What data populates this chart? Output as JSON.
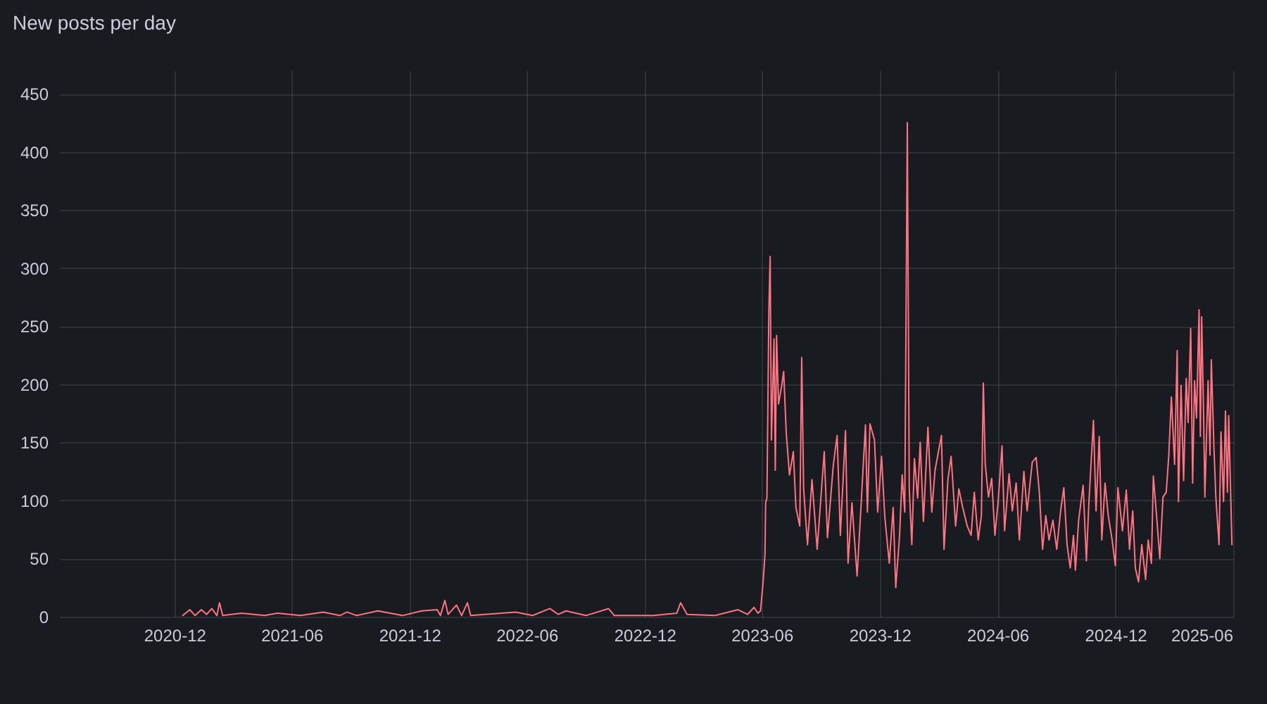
{
  "chart_data": {
    "type": "line",
    "title": "New posts per day",
    "x": [
      "2020-12-14",
      "2020-12-25",
      "2021-01-02",
      "2021-01-12",
      "2021-01-20",
      "2021-01-28",
      "2021-02-05",
      "2021-02-09",
      "2021-02-14",
      "2021-03-15",
      "2021-04-20",
      "2021-05-10",
      "2021-06-15",
      "2021-07-20",
      "2021-08-15",
      "2021-08-26",
      "2021-09-10",
      "2021-10-13",
      "2021-11-20",
      "2021-12-20",
      "2022-01-13",
      "2022-01-18",
      "2022-01-25",
      "2022-01-30",
      "2022-02-12",
      "2022-02-20",
      "2022-03-01",
      "2022-03-06",
      "2022-05-15",
      "2022-06-10",
      "2022-07-07",
      "2022-07-20",
      "2022-08-01",
      "2022-09-01",
      "2022-10-06",
      "2022-10-15",
      "2022-12-15",
      "2023-01-20",
      "2023-01-26",
      "2023-02-05",
      "2023-03-20",
      "2023-04-25",
      "2023-05-10",
      "2023-05-20",
      "2023-05-26",
      "2023-05-30",
      "2023-06-03",
      "2023-06-06",
      "2023-06-07",
      "2023-06-09",
      "2023-06-12",
      "2023-06-14",
      "2023-06-16",
      "2023-06-20",
      "2023-06-22",
      "2023-06-24",
      "2023-06-27",
      "2023-07-02",
      "2023-07-05",
      "2023-07-09",
      "2023-07-14",
      "2023-07-20",
      "2023-07-24",
      "2023-07-30",
      "2023-08-02",
      "2023-08-05",
      "2023-08-11",
      "2023-08-18",
      "2023-08-26",
      "2023-09-06",
      "2023-09-11",
      "2023-09-20",
      "2023-09-26",
      "2023-10-01",
      "2023-10-09",
      "2023-10-13",
      "2023-10-19",
      "2023-10-27",
      "2023-11-03",
      "2023-11-09",
      "2023-11-12",
      "2023-11-16",
      "2023-11-23",
      "2023-11-28",
      "2023-12-04",
      "2023-12-09",
      "2023-12-16",
      "2023-12-22",
      "2023-12-26",
      "2024-01-01",
      "2024-01-05",
      "2024-01-09",
      "2024-01-13",
      "2024-01-16",
      "2024-01-20",
      "2024-01-24",
      "2024-01-29",
      "2024-02-02",
      "2024-02-07",
      "2024-02-14",
      "2024-02-20",
      "2024-02-25",
      "2024-03-06",
      "2024-03-10",
      "2024-03-16",
      "2024-03-21",
      "2024-03-28",
      "2024-04-02",
      "2024-04-08",
      "2024-04-15",
      "2024-04-21",
      "2024-04-26",
      "2024-05-02",
      "2024-05-07",
      "2024-05-10",
      "2024-05-13",
      "2024-05-18",
      "2024-05-23",
      "2024-05-28",
      "2024-06-02",
      "2024-06-08",
      "2024-06-12",
      "2024-06-19",
      "2024-06-24",
      "2024-06-30",
      "2024-07-05",
      "2024-07-12",
      "2024-07-17",
      "2024-07-25",
      "2024-07-31",
      "2024-08-05",
      "2024-08-10",
      "2024-08-15",
      "2024-08-20",
      "2024-08-26",
      "2024-09-01",
      "2024-09-07",
      "2024-09-12",
      "2024-09-17",
      "2024-09-22",
      "2024-09-27",
      "2024-09-30",
      "2024-10-05",
      "2024-10-12",
      "2024-10-17",
      "2024-10-21",
      "2024-10-28",
      "2024-11-01",
      "2024-11-06",
      "2024-11-10",
      "2024-11-15",
      "2024-11-20",
      "2024-11-26",
      "2024-12-01",
      "2024-12-05",
      "2024-12-12",
      "2024-12-18",
      "2024-12-23",
      "2024-12-28",
      "2025-01-01",
      "2025-01-06",
      "2025-01-11",
      "2025-01-17",
      "2025-01-21",
      "2025-01-26",
      "2025-01-29",
      "2025-02-03",
      "2025-02-08",
      "2025-02-13",
      "2025-02-18",
      "2025-02-22",
      "2025-02-26",
      "2025-03-03",
      "2025-03-07",
      "2025-03-09",
      "2025-03-13",
      "2025-03-17",
      "2025-03-21",
      "2025-03-24",
      "2025-03-28",
      "2025-03-31",
      "2025-04-03",
      "2025-04-06",
      "2025-04-10",
      "2025-04-12",
      "2025-04-14",
      "2025-04-17",
      "2025-04-19",
      "2025-04-24",
      "2025-04-27",
      "2025-04-29",
      "2025-05-03",
      "2025-05-06",
      "2025-05-11",
      "2025-05-14",
      "2025-05-18",
      "2025-05-21",
      "2025-05-24",
      "2025-05-26",
      "2025-05-29",
      "2025-05-31"
    ],
    "series": [
      {
        "color": "#ff7383",
        "values": [
          1,
          6,
          1,
          6,
          2,
          7,
          1,
          12,
          1,
          3,
          1,
          3,
          1,
          4,
          1,
          4,
          1,
          5,
          1,
          5,
          6,
          1,
          14,
          2,
          10,
          1,
          12,
          1,
          4,
          1,
          7,
          2,
          5,
          1,
          7,
          1,
          1,
          3,
          12,
          2,
          1,
          6,
          2,
          8,
          3,
          5,
          29,
          54,
          98,
          102,
          263,
          310,
          152,
          239,
          126,
          242,
          183,
          199,
          211,
          158,
          122,
          142,
          94,
          78,
          223,
          110,
          62,
          118,
          58,
          142,
          68,
          130,
          156,
          70,
          160,
          46,
          98,
          35,
          104,
          165,
          90,
          166,
          152,
          90,
          138,
          86,
          46,
          94,
          25,
          70,
          122,
          90,
          425,
          110,
          62,
          136,
          102,
          150,
          82,
          163,
          90,
          126,
          156,
          58,
          118,
          138,
          78,
          110,
          94,
          78,
          70,
          107,
          66,
          87,
          201,
          131,
          103,
          119,
          70,
          99,
          147,
          74,
          123,
          91,
          115,
          66,
          125,
          91,
          133,
          137,
          107,
          58,
          87,
          66,
          83,
          58,
          91,
          111,
          62,
          42,
          70,
          40,
          83,
          113,
          48,
          99,
          169,
          91,
          155,
          66,
          115,
          87,
          66,
          44,
          111,
          74,
          109,
          58,
          91,
          42,
          30,
          62,
          32,
          66,
          46,
          121,
          87,
          50,
          103,
          107,
          139,
          189,
          131,
          229,
          99,
          199,
          117,
          205,
          167,
          248,
          115,
          203,
          171,
          264,
          155,
          258,
          175,
          103,
          203,
          139,
          221,
          147,
          103,
          62,
          159,
          99,
          177,
          107,
          173,
          107,
          62
        ]
      }
    ],
    "xlim": [
      "2020-06-05",
      "2025-06-02"
    ],
    "xticks": [
      "2020-12",
      "2021-06",
      "2021-12",
      "2022-06",
      "2022-12",
      "2023-06",
      "2023-12",
      "2024-06",
      "2024-12",
      "2025-06"
    ],
    "ylim": [
      0,
      470
    ],
    "yticks": [
      0,
      50,
      100,
      150,
      200,
      250,
      300,
      350,
      400,
      450
    ],
    "grid": true
  }
}
